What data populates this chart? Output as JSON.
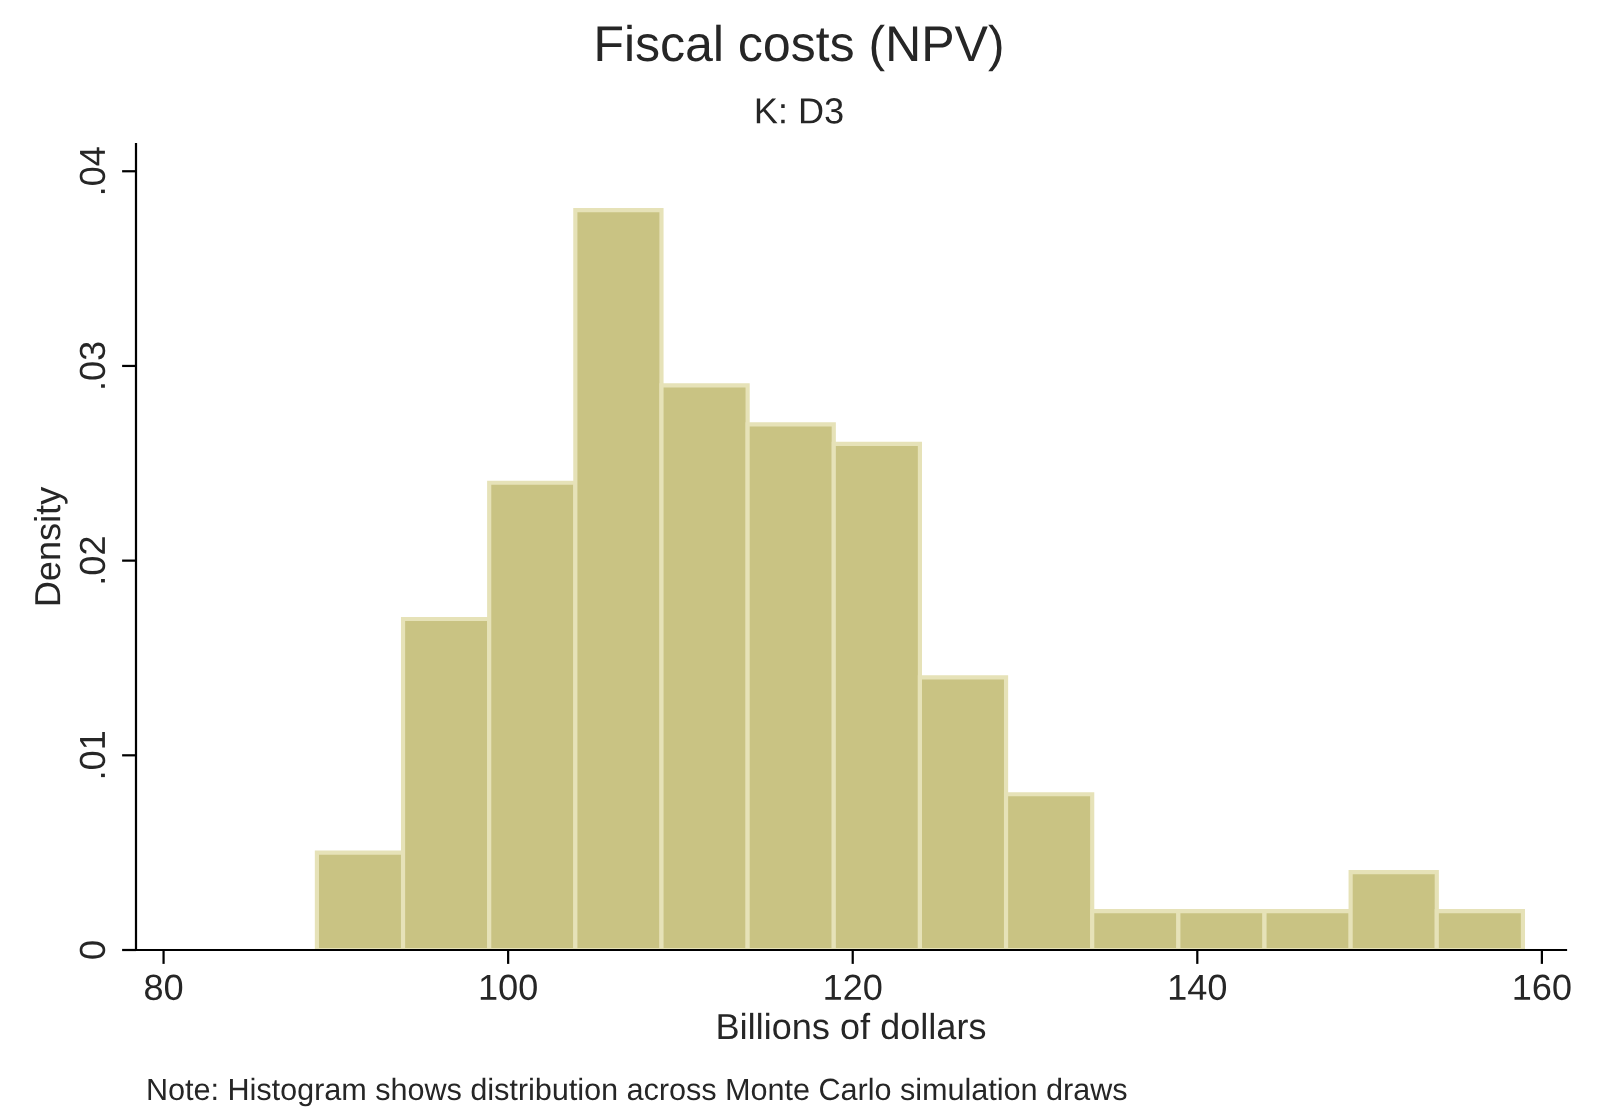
{
  "chart_data": {
    "type": "histogram",
    "title": "Fiscal costs (NPV)",
    "subtitle": "K: D3",
    "xlabel": "Billions of dollars",
    "ylabel": "Density",
    "bins": [
      88.9,
      93.9,
      98.9,
      103.9,
      108.9,
      113.9,
      118.9,
      123.9,
      128.9,
      133.9,
      138.9,
      143.9,
      148.9,
      153.9,
      158.9
    ],
    "values": [
      0.005,
      0.017,
      0.024,
      0.038,
      0.029,
      0.027,
      0.026,
      0.014,
      0.008,
      0.002,
      0.002,
      0.002,
      0.004,
      0.002
    ],
    "color": "#c9c383",
    "xlim": [
      78.4,
      161.4
    ],
    "xticks": [
      80,
      100,
      120,
      140,
      160
    ],
    "ylim": [
      0,
      0.0414
    ],
    "yticks": [
      {
        "value": 0,
        "label": "0"
      },
      {
        "value": 0.01,
        "label": ".01"
      },
      {
        "value": 0.02,
        "label": ".02"
      },
      {
        "value": 0.03,
        "label": ".03"
      },
      {
        "value": 0.04,
        "label": ".04"
      }
    ],
    "grid": false,
    "annotations": [
      "Note: Histogram shows distribution across Monte Carlo simulation draws"
    ]
  }
}
